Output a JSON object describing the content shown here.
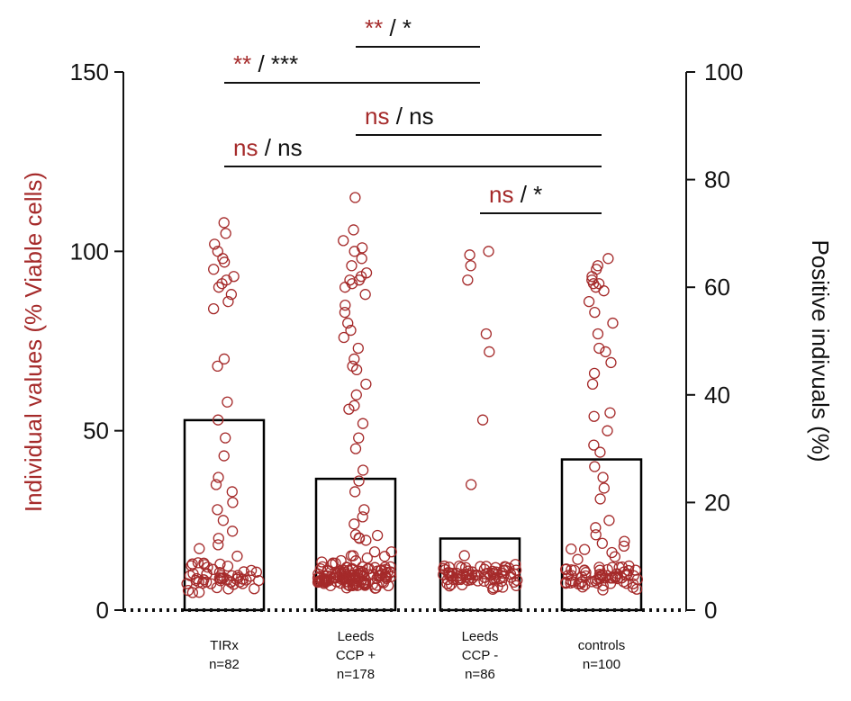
{
  "chart_data": {
    "type": "bar",
    "ylabel_left": "Individual values (% Viable cells)",
    "ylabel_right": "Positive indivuals (%)",
    "ylim_left": [
      0,
      150
    ],
    "ylim_right": [
      0,
      100
    ],
    "yticks_left": [
      "0",
      "50",
      "100",
      "150"
    ],
    "yticks_right": [
      "0",
      "20",
      "40",
      "60",
      "80",
      "100"
    ],
    "colors": {
      "points": "#a52a2a",
      "sig_primary": "#a52a2a",
      "sig_secondary": "#111111",
      "bars": "#000000"
    },
    "categories": [
      {
        "lines": [
          "TIRx",
          "n=82"
        ]
      },
      {
        "lines": [
          "Leeds",
          "CCP +",
          "n=178"
        ]
      },
      {
        "lines": [
          "Leeds",
          "CCP -",
          "n=86"
        ]
      },
      {
        "lines": [
          "controls",
          "n=100"
        ]
      }
    ],
    "bar_values_right_axis": [
      35.3,
      24.4,
      13.3,
      28.0
    ],
    "points_left_axis": [
      [
        108,
        105,
        102,
        100,
        98,
        97,
        95,
        93,
        92,
        91,
        90,
        88,
        86,
        84,
        70,
        68,
        58,
        53,
        48,
        43,
        37,
        35,
        33,
        30,
        28,
        25,
        22,
        20,
        18,
        16,
        15,
        14,
        13,
        12,
        12,
        11,
        11,
        10,
        10,
        10,
        10,
        10,
        10,
        9,
        9,
        9,
        9,
        9,
        9,
        9,
        9,
        9,
        9,
        8,
        8,
        8,
        8,
        8,
        8,
        8,
        8,
        8,
        8,
        8,
        7,
        7,
        7,
        7,
        7,
        7,
        7,
        7,
        7,
        11,
        11,
        12,
        13,
        14,
        10,
        10,
        9,
        8
      ],
      [
        115,
        106,
        103,
        101,
        100,
        98,
        96,
        94,
        93,
        92,
        92,
        91,
        90,
        88,
        85,
        83,
        80,
        78,
        76,
        73,
        70,
        68,
        67,
        63,
        60,
        57,
        56,
        52,
        48,
        45,
        39,
        36,
        33,
        28,
        26,
        24,
        21,
        20,
        19,
        18,
        18,
        17,
        16,
        15,
        15,
        14,
        14,
        14,
        13,
        13,
        13,
        13,
        12,
        12,
        12,
        12,
        12,
        12,
        11,
        11,
        11,
        11,
        11,
        11,
        11,
        11,
        11,
        11,
        11,
        10,
        10,
        10,
        10,
        10,
        10,
        10,
        10,
        10,
        10,
        10,
        10,
        10,
        10,
        10,
        10,
        10,
        10,
        10,
        10,
        10,
        10,
        10,
        10,
        10,
        10,
        10,
        10,
        10,
        10,
        10,
        10,
        10,
        9,
        9,
        9,
        9,
        9,
        9,
        9,
        9,
        9,
        9,
        9,
        9,
        9,
        9,
        9,
        9,
        9,
        9,
        9,
        9,
        9,
        9,
        9,
        9,
        9,
        9,
        9,
        9,
        9,
        9,
        9,
        9,
        9,
        9,
        9,
        9,
        9,
        9,
        9,
        9,
        9,
        8,
        8,
        8,
        8,
        8,
        8,
        8,
        8,
        8,
        8,
        8,
        8,
        8,
        8,
        8,
        8,
        8,
        8,
        8,
        8,
        8,
        8,
        8,
        8,
        8,
        8,
        8,
        8,
        8,
        8,
        8,
        8,
        8,
        8,
        8
      ],
      [
        100,
        99,
        96,
        92,
        77,
        72,
        53,
        35,
        13,
        13,
        12,
        12,
        12,
        12,
        12,
        12,
        11,
        11,
        11,
        11,
        11,
        11,
        11,
        11,
        11,
        11,
        11,
        11,
        10,
        10,
        10,
        10,
        10,
        10,
        10,
        10,
        10,
        10,
        10,
        10,
        10,
        10,
        10,
        10,
        10,
        10,
        10,
        10,
        10,
        10,
        10,
        10,
        10,
        10,
        9,
        9,
        9,
        9,
        9,
        9,
        9,
        9,
        9,
        9,
        9,
        9,
        9,
        9,
        9,
        9,
        9,
        9,
        9,
        8,
        8,
        8,
        8,
        8,
        8,
        8,
        8,
        8,
        8,
        8,
        8,
        8
      ],
      [
        98,
        96,
        95,
        93,
        92,
        91,
        91,
        90,
        89,
        86,
        83,
        80,
        77,
        73,
        72,
        69,
        66,
        63,
        55,
        54,
        50,
        46,
        44,
        40,
        37,
        34,
        31,
        25,
        23,
        21,
        19,
        18,
        17,
        16,
        15,
        14,
        13,
        13,
        12,
        12,
        12,
        12,
        12,
        11,
        11,
        11,
        11,
        11,
        11,
        11,
        10,
        10,
        10,
        10,
        10,
        10,
        10,
        10,
        10,
        10,
        10,
        10,
        10,
        10,
        10,
        9,
        9,
        9,
        9,
        9,
        9,
        9,
        9,
        9,
        9,
        9,
        9,
        9,
        9,
        9,
        9,
        8,
        8,
        8,
        8,
        8,
        8,
        8,
        8,
        8,
        8,
        8,
        8,
        8,
        8,
        7,
        7,
        7,
        7,
        7
      ]
    ],
    "comparisons": [
      {
        "from": 1,
        "to": 2,
        "left": "**",
        "sep": " / ",
        "right": "*"
      },
      {
        "from": 0,
        "to": 2,
        "left": "**",
        "sep": " / ",
        "right": "***"
      },
      {
        "from": 1,
        "to": 3,
        "left": "ns",
        "sep": " / ",
        "right": "ns"
      },
      {
        "from": 0,
        "to": 3,
        "left": "ns",
        "sep": " / ",
        "right": "ns"
      },
      {
        "from": 2,
        "to": 3,
        "left": "ns",
        "sep": " / ",
        "right": "*"
      }
    ]
  }
}
